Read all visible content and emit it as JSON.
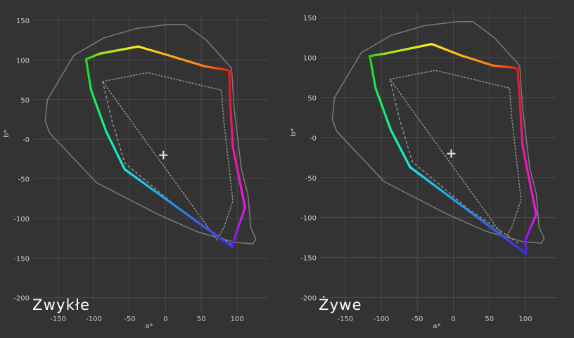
{
  "colors": {
    "background": "#333333",
    "grid": "#4a4a4a",
    "tick_text": "#c8c8c8",
    "reference_outline": "#7a7a7a",
    "dotted_outline": "#8c8c8c",
    "dashed_outline": "#8c8c8c",
    "white_point": "#e6e6e6",
    "panel_label": "#ffffff"
  },
  "chart_data": [
    {
      "type": "line",
      "panel_label": "Zwykłe",
      "xlabel": "a*",
      "ylabel": "b*",
      "xlim": [
        -185,
        143
      ],
      "ylim": [
        -218,
        158
      ],
      "xticks": [
        -150,
        -100,
        -50,
        0,
        50,
        100
      ],
      "yticks": [
        150,
        100,
        50,
        0,
        -50,
        -100,
        -150,
        -200
      ],
      "xtick_labels": [
        "-150",
        "-100",
        "-50",
        "0",
        "50",
        "100"
      ],
      "ytick_labels": [
        "150",
        "100",
        "50",
        "-0",
        "-50",
        "-100",
        "-150",
        "-200"
      ],
      "white_point": [
        -3,
        -20
      ],
      "gamut": [
        {
          "a": -111,
          "b": 101,
          "color": "#2ecc1f"
        },
        {
          "a": -92,
          "b": 108,
          "color": "#9ae01a"
        },
        {
          "a": -38,
          "b": 117,
          "color": "#ffee1a"
        },
        {
          "a": 0,
          "b": 107,
          "color": "#ffb01a"
        },
        {
          "a": 55,
          "b": 92,
          "color": "#ff7a14"
        },
        {
          "a": 89,
          "b": 87,
          "color": "#ee1a14"
        },
        {
          "a": 90,
          "b": 50,
          "color": "#e01a3e"
        },
        {
          "a": 94,
          "b": -10,
          "color": "#ee1a9a"
        },
        {
          "a": 111,
          "b": -86,
          "color": "#e818ee"
        },
        {
          "a": 97,
          "b": -123,
          "color": "#8a1aee"
        },
        {
          "a": 93,
          "b": -136,
          "color": "#3a2aee"
        },
        {
          "a": -57,
          "b": -38,
          "color": "#1ae6e6"
        },
        {
          "a": -83,
          "b": 10,
          "color": "#1aee98"
        },
        {
          "a": -104,
          "b": 62,
          "color": "#1ae84a"
        },
        {
          "a": -111,
          "b": 101,
          "color": "#2ecc1f"
        }
      ],
      "reference_outline": [
        [
          -168,
          23
        ],
        [
          -165,
          50
        ],
        [
          -128,
          106
        ],
        [
          -86,
          128
        ],
        [
          -40,
          140
        ],
        [
          5,
          145
        ],
        [
          27,
          145
        ],
        [
          57,
          125
        ],
        [
          92,
          90
        ],
        [
          96,
          37
        ],
        [
          106,
          -38
        ],
        [
          115,
          -70
        ],
        [
          119,
          -112
        ],
        [
          126,
          -126
        ],
        [
          122,
          -132
        ],
        [
          96,
          -130
        ],
        [
          45,
          -117
        ],
        [
          -10,
          -95
        ],
        [
          -96,
          -55
        ],
        [
          -162,
          8
        ],
        [
          -168,
          23
        ]
      ],
      "dotted_outline": [
        [
          -88,
          73
        ],
        [
          -25,
          84
        ],
        [
          78,
          62
        ],
        [
          81,
          25
        ],
        [
          94,
          -78
        ],
        [
          82,
          -110
        ],
        [
          72,
          -127
        ],
        [
          -88,
          73
        ]
      ],
      "dashed_outline": [
        [
          -88,
          73
        ],
        [
          -75,
          24
        ],
        [
          -57,
          -30
        ],
        [
          22,
          -90
        ],
        [
          92,
          -133
        ]
      ]
    },
    {
      "type": "line",
      "panel_label": "Żywe",
      "xlabel": "a*",
      "ylabel": "b*",
      "xlim": [
        -185,
        143
      ],
      "ylim": [
        -218,
        158
      ],
      "xticks": [
        -150,
        -100,
        -50,
        0,
        50,
        100
      ],
      "yticks": [
        150,
        100,
        50,
        0,
        -50,
        -100,
        -150,
        -200
      ],
      "xtick_labels": [
        "-150",
        "-100",
        "-50",
        "0",
        "50",
        "100"
      ],
      "ytick_labels": [
        "150",
        "100",
        "50",
        "-0",
        "-50",
        "-100",
        "-150",
        "-200"
      ],
      "white_point": [
        -3,
        -20
      ],
      "gamut": [
        {
          "a": -116,
          "b": 102,
          "color": "#2ecc1f"
        },
        {
          "a": -95,
          "b": 105,
          "color": "#9ae01a"
        },
        {
          "a": -30,
          "b": 117,
          "color": "#ffee1a"
        },
        {
          "a": 10,
          "b": 103,
          "color": "#ffb01a"
        },
        {
          "a": 55,
          "b": 90,
          "color": "#ff7a14"
        },
        {
          "a": 89,
          "b": 87,
          "color": "#ee1a14"
        },
        {
          "a": 92,
          "b": 50,
          "color": "#e01a3e"
        },
        {
          "a": 96,
          "b": -10,
          "color": "#ee1a9a"
        },
        {
          "a": 115,
          "b": -96,
          "color": "#e818ee"
        },
        {
          "a": 100,
          "b": -128,
          "color": "#8a1aee"
        },
        {
          "a": 101,
          "b": -145,
          "color": "#3a2aee"
        },
        {
          "a": -60,
          "b": -37,
          "color": "#1ae6e6"
        },
        {
          "a": -87,
          "b": 10,
          "color": "#1aee98"
        },
        {
          "a": -108,
          "b": 62,
          "color": "#1ae84a"
        },
        {
          "a": -116,
          "b": 102,
          "color": "#2ecc1f"
        }
      ],
      "reference_outline": [
        [
          -168,
          23
        ],
        [
          -165,
          50
        ],
        [
          -128,
          106
        ],
        [
          -86,
          128
        ],
        [
          -40,
          140
        ],
        [
          5,
          145
        ],
        [
          27,
          145
        ],
        [
          57,
          125
        ],
        [
          92,
          90
        ],
        [
          96,
          37
        ],
        [
          106,
          -38
        ],
        [
          115,
          -70
        ],
        [
          119,
          -112
        ],
        [
          126,
          -126
        ],
        [
          122,
          -132
        ],
        [
          96,
          -130
        ],
        [
          45,
          -117
        ],
        [
          -10,
          -95
        ],
        [
          -96,
          -55
        ],
        [
          -162,
          8
        ],
        [
          -168,
          23
        ]
      ],
      "dotted_outline": [
        [
          -88,
          73
        ],
        [
          -25,
          84
        ],
        [
          78,
          62
        ],
        [
          81,
          25
        ],
        [
          94,
          -78
        ],
        [
          82,
          -110
        ],
        [
          72,
          -127
        ],
        [
          -88,
          73
        ]
      ],
      "dashed_outline": [
        [
          -88,
          73
        ],
        [
          -75,
          24
        ],
        [
          -57,
          -30
        ],
        [
          22,
          -90
        ],
        [
          92,
          -133
        ]
      ]
    }
  ]
}
